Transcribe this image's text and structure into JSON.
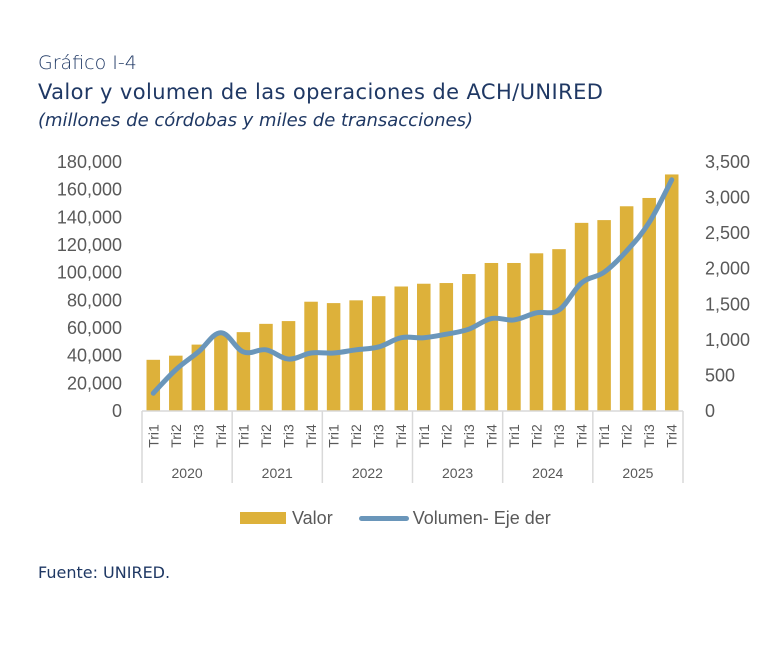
{
  "header": {
    "kicker": "Gráfico I-4",
    "title": "Valor y volumen de las operaciones de ACH/UNIRED",
    "subtitle": "(millones de córdobas y miles de transacciones)"
  },
  "footer": {
    "source": "Fuente: UNIRED."
  },
  "colors": {
    "bar": "#DDB13A",
    "line": "#6A96BA",
    "title": "#1F3864",
    "axis_text": "#595959",
    "axis_lines": "#D9D9D9"
  },
  "chart_data": {
    "type": "bar",
    "title": "Valor y volumen de las operaciones de ACH/UNIRED",
    "subtitle": "(millones de córdobas y miles de transacciones)",
    "xlabel": "",
    "ylabel": "",
    "y2label": "",
    "groups": [
      {
        "year": "2020",
        "quarters": [
          "Tri1",
          "Tri2",
          "Tri3",
          "Tri4"
        ]
      },
      {
        "year": "2021",
        "quarters": [
          "Tri1",
          "Tri2",
          "Tri3",
          "Tri4"
        ]
      },
      {
        "year": "2022",
        "quarters": [
          "Tri1",
          "Tri2",
          "Tri3",
          "Tri4"
        ]
      },
      {
        "year": "2023",
        "quarters": [
          "Tri1",
          "Tri2",
          "Tri3",
          "Tri4"
        ]
      },
      {
        "year": "2024",
        "quarters": [
          "Tri1",
          "Tri2",
          "Tri3",
          "Tri4"
        ]
      },
      {
        "year": "2025",
        "quarters": [
          "Tri1",
          "Tri2",
          "Tri3",
          "Tri4"
        ]
      }
    ],
    "categories": [
      "2020 Tri1",
      "2020 Tri2",
      "2020 Tri3",
      "2020 Tri4",
      "2021 Tri1",
      "2021 Tri2",
      "2021 Tri3",
      "2021 Tri4",
      "2022 Tri1",
      "2022 Tri2",
      "2022 Tri3",
      "2022 Tri4",
      "2023 Tri1",
      "2023 Tri2",
      "2023 Tri3",
      "2023 Tri4",
      "2024 Tri1",
      "2024 Tri2",
      "2024 Tri3",
      "2024 Tri4",
      "2025 Tri1",
      "2025 Tri2",
      "2025 Tri3",
      "2025 Tri4"
    ],
    "series": [
      {
        "name": "Valor",
        "type": "bar",
        "axis": "left",
        "values": [
          37000,
          40000,
          48000,
          55000,
          57000,
          63000,
          65000,
          79000,
          78000,
          80000,
          83000,
          90000,
          92000,
          92500,
          99000,
          107000,
          107000,
          114000,
          117000,
          136000,
          138000,
          148000,
          154000,
          171000
        ]
      },
      {
        "name": "Volumen- Eje der",
        "type": "line",
        "axis": "right",
        "values": [
          250,
          580,
          830,
          1100,
          830,
          860,
          730,
          815,
          815,
          860,
          900,
          1030,
          1030,
          1080,
          1150,
          1300,
          1280,
          1380,
          1420,
          1800,
          1950,
          2250,
          2650,
          3250
        ]
      }
    ],
    "y_left": {
      "min": 0,
      "max": 180000,
      "ticks": [
        "0",
        "20,000",
        "40,000",
        "60,000",
        "80,000",
        "100,000",
        "120,000",
        "140,000",
        "160,000",
        "180,000"
      ]
    },
    "y_right": {
      "min": 0,
      "max": 3500,
      "ticks": [
        "0",
        "500",
        "1,000",
        "1,500",
        "2,000",
        "2,500",
        "3,000",
        "3,500"
      ]
    },
    "grid": false,
    "legend": {
      "position": "bottom",
      "entries": [
        "Valor",
        "Volumen- Eje der"
      ]
    }
  }
}
